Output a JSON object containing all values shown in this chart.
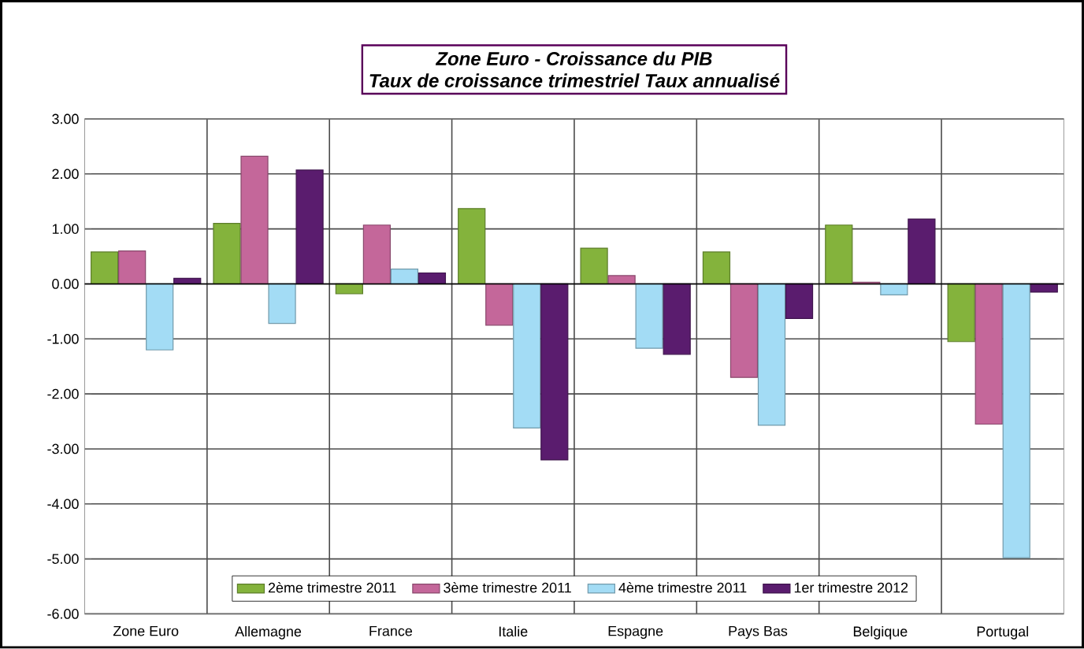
{
  "chart_data": {
    "type": "bar",
    "title": "Zone Euro - Croissance du PIB",
    "subtitle": "Taux de croissance trimestriel Taux annualisé",
    "categories": [
      "Zone Euro",
      "Allemagne",
      "France",
      "Italie",
      "Espagne",
      "Pays Bas",
      "Belgique",
      "Portugal"
    ],
    "series": [
      {
        "name": "2ème trimestre 2011",
        "color": "#84b33c",
        "values": [
          0.58,
          1.1,
          -0.18,
          1.37,
          0.65,
          0.58,
          1.07,
          -1.05
        ]
      },
      {
        "name": "3ème trimestre 2011",
        "color": "#c4679a",
        "values": [
          0.6,
          2.32,
          1.07,
          -0.75,
          0.15,
          -1.7,
          0.03,
          -2.55
        ]
      },
      {
        "name": "4ème trimestre 2011",
        "color": "#a3dcf5",
        "values": [
          -1.2,
          -0.72,
          0.27,
          -2.62,
          -1.17,
          -2.57,
          -0.2,
          -4.98
        ]
      },
      {
        "name": "1er trimestre 2012",
        "color": "#5a1c6e",
        "values": [
          0.1,
          2.07,
          0.2,
          -3.2,
          -1.28,
          -0.63,
          1.18,
          -0.15
        ]
      }
    ],
    "ylim": [
      -6,
      3
    ],
    "yticks": [
      {
        "value": -6,
        "label": "-6.00"
      },
      {
        "value": -5,
        "label": "-5.00"
      },
      {
        "value": -4,
        "label": "-4.00"
      },
      {
        "value": -3,
        "label": "-3.00"
      },
      {
        "value": -2,
        "label": "-2.00"
      },
      {
        "value": -1,
        "label": "-1.00"
      },
      {
        "value": 0,
        "label": "0.00"
      },
      {
        "value": 1,
        "label": "1.00"
      },
      {
        "value": 2,
        "label": "2.00"
      },
      {
        "value": 3,
        "label": "3.00"
      }
    ],
    "grid": true,
    "legend": "bottom"
  }
}
